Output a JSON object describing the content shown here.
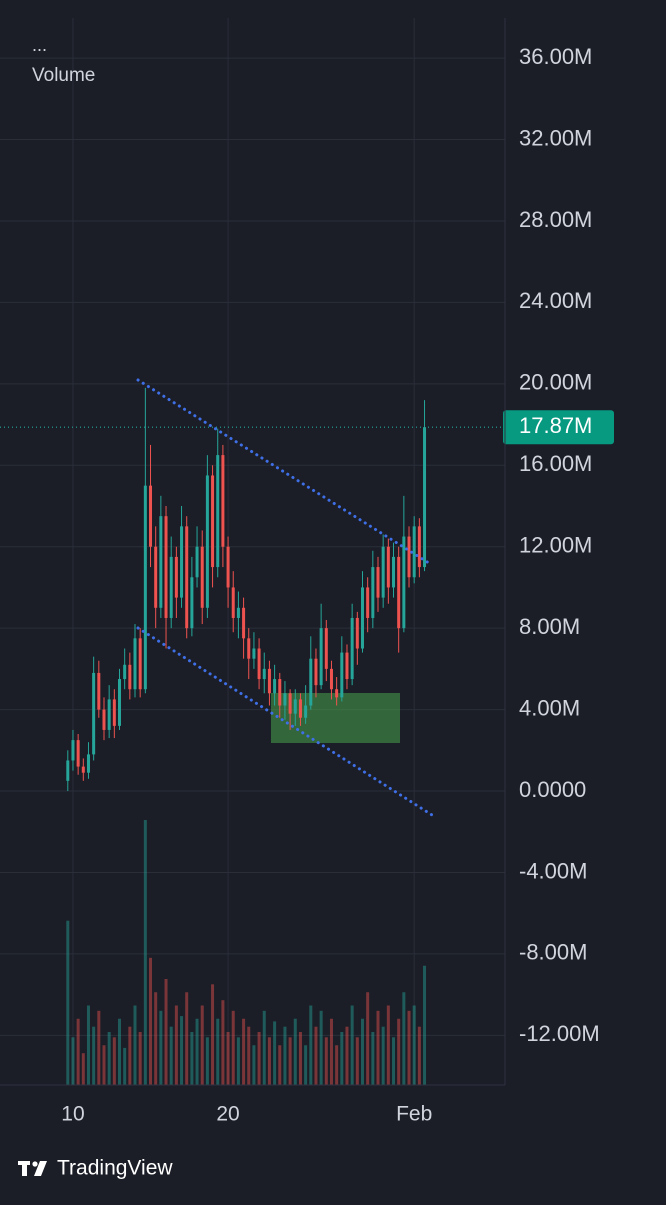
{
  "chart_data": {
    "type": "candlestick",
    "menu": "...",
    "categories": [
      null,
      "10",
      null,
      null,
      null,
      null,
      null,
      null,
      null,
      null,
      null,
      null,
      null,
      null,
      null,
      null,
      null,
      null,
      null,
      null,
      null,
      null,
      null,
      null,
      null,
      null,
      null,
      null,
      null,
      null,
      null,
      "20",
      null,
      null,
      null,
      null,
      null,
      null,
      null,
      null,
      null,
      null,
      null,
      null,
      null,
      null,
      null,
      null,
      null,
      null,
      null,
      null,
      null,
      null,
      null,
      null,
      null,
      null,
      null,
      null,
      null,
      null,
      null,
      null,
      null,
      null,
      null,
      "Feb",
      null,
      null
    ],
    "open": [
      0.5,
      1.5,
      2.5,
      1.2,
      0.9,
      1.8,
      5.8,
      4.0,
      3.0,
      4.5,
      3.2,
      5.5,
      6.2,
      5.0,
      7.5,
      5.0,
      15.0,
      12.0,
      9.0,
      13.5,
      8.5,
      11.5,
      9.5,
      13.0,
      8.0,
      10.5,
      12.0,
      9.0,
      15.5,
      11.0,
      16.5,
      12.0,
      10.0,
      8.5,
      9.0,
      7.5,
      6.5,
      7.0,
      5.5,
      6.0,
      4.8,
      5.5,
      4.2,
      4.8,
      3.8,
      4.5,
      3.6,
      4.2,
      6.5,
      5.2,
      8.0,
      6.0,
      5.0,
      4.6,
      6.8,
      5.5,
      8.5,
      7.0,
      10.0,
      8.5,
      11.0,
      9.5,
      12.0,
      10.0,
      11.5,
      8.0,
      12.5,
      10.5,
      13.0,
      11.0
    ],
    "high": [
      2.0,
      3.0,
      2.8,
      1.6,
      2.4,
      6.6,
      6.4,
      4.6,
      5.2,
      5.0,
      6.0,
      7.0,
      6.8,
      8.2,
      8.0,
      19.8,
      17.0,
      13.0,
      14.5,
      14.0,
      12.5,
      12.0,
      14.0,
      13.5,
      11.5,
      13.0,
      12.8,
      16.5,
      16.0,
      17.8,
      17.0,
      12.5,
      10.8,
      9.8,
      9.5,
      8.0,
      7.8,
      7.5,
      6.8,
      6.4,
      6.2,
      5.8,
      5.4,
      5.0,
      5.0,
      4.8,
      5.2,
      7.6,
      7.0,
      9.2,
      8.4,
      6.4,
      5.6,
      7.6,
      7.2,
      9.2,
      8.8,
      10.8,
      10.5,
      11.8,
      11.5,
      12.6,
      12.4,
      12.2,
      12.0,
      14.5,
      13.0,
      13.5,
      13.4,
      19.2
    ],
    "low": [
      0.0,
      1.0,
      0.8,
      0.5,
      0.6,
      1.5,
      3.6,
      2.5,
      2.6,
      2.6,
      3.0,
      5.0,
      4.5,
      4.6,
      4.6,
      4.8,
      11.0,
      8.0,
      8.5,
      7.0,
      8.0,
      8.5,
      9.0,
      7.5,
      7.6,
      10.0,
      8.2,
      8.5,
      10.0,
      10.5,
      11.0,
      9.0,
      7.8,
      7.5,
      6.5,
      5.5,
      6.0,
      5.0,
      4.8,
      4.2,
      4.2,
      3.6,
      3.5,
      3.0,
      3.2,
      3.2,
      3.3,
      4.0,
      4.6,
      5.0,
      5.4,
      4.5,
      4.2,
      4.4,
      5.0,
      5.2,
      6.2,
      6.8,
      7.8,
      8.0,
      8.8,
      9.0,
      9.2,
      9.5,
      6.8,
      7.8,
      10.0,
      10.2,
      10.5,
      10.8
    ],
    "close": [
      1.5,
      2.5,
      1.2,
      0.9,
      1.8,
      5.8,
      4.0,
      3.0,
      4.5,
      3.2,
      5.5,
      6.2,
      5.0,
      7.5,
      5.0,
      15.0,
      12.0,
      9.0,
      13.5,
      8.5,
      11.5,
      9.5,
      13.0,
      8.0,
      10.5,
      12.0,
      9.0,
      15.5,
      11.0,
      16.5,
      12.0,
      10.0,
      8.5,
      9.0,
      7.5,
      6.5,
      7.0,
      5.5,
      6.0,
      4.8,
      5.5,
      4.2,
      4.8,
      3.8,
      4.5,
      3.6,
      4.2,
      6.5,
      5.2,
      8.0,
      6.0,
      5.0,
      4.6,
      6.8,
      5.5,
      8.5,
      7.0,
      10.0,
      8.5,
      11.0,
      9.5,
      12.0,
      10.0,
      11.5,
      8.0,
      12.5,
      10.5,
      13.0,
      11.0,
      17.87
    ],
    "up_color": "#26a69a",
    "down_color": "#ef5350",
    "ylim": [
      -14.44,
      37.97
    ],
    "yticks": [
      {
        "value": 36,
        "label": "36.00M"
      },
      {
        "value": 32,
        "label": "32.00M"
      },
      {
        "value": 28,
        "label": "28.00M"
      },
      {
        "value": 24,
        "label": "24.00M"
      },
      {
        "value": 20,
        "label": "20.00M"
      },
      {
        "value": 16,
        "label": "16.00M"
      },
      {
        "value": 12,
        "label": "12.00M"
      },
      {
        "value": 8,
        "label": "8.00M"
      },
      {
        "value": 4,
        "label": "4.00M"
      },
      {
        "value": 0,
        "label": "0.0000"
      },
      {
        "value": -4,
        "label": "-4.00M"
      },
      {
        "value": -8,
        "label": "-8.00M"
      },
      {
        "value": -12,
        "label": "-12.00M"
      }
    ],
    "grid": true,
    "last_price": {
      "value": 17.87,
      "label": "17.87M"
    },
    "volume": {
      "name": "Volume",
      "values": [
        62,
        18,
        25,
        12,
        30,
        22,
        28,
        15,
        20,
        18,
        25,
        14,
        22,
        30,
        20,
        100,
        48,
        35,
        28,
        40,
        22,
        30,
        26,
        35,
        20,
        25,
        30,
        18,
        38,
        25,
        32,
        20,
        28,
        18,
        25,
        22,
        15,
        20,
        28,
        18,
        24,
        15,
        22,
        18,
        25,
        20,
        15,
        30,
        22,
        28,
        18,
        25,
        15,
        20,
        22,
        30,
        18,
        25,
        35,
        20,
        28,
        22,
        30,
        18,
        25,
        35,
        28,
        30,
        22,
        45
      ]
    },
    "volume_lim": [
      0,
      100
    ]
  },
  "footer": {
    "brand": "TradingView"
  }
}
